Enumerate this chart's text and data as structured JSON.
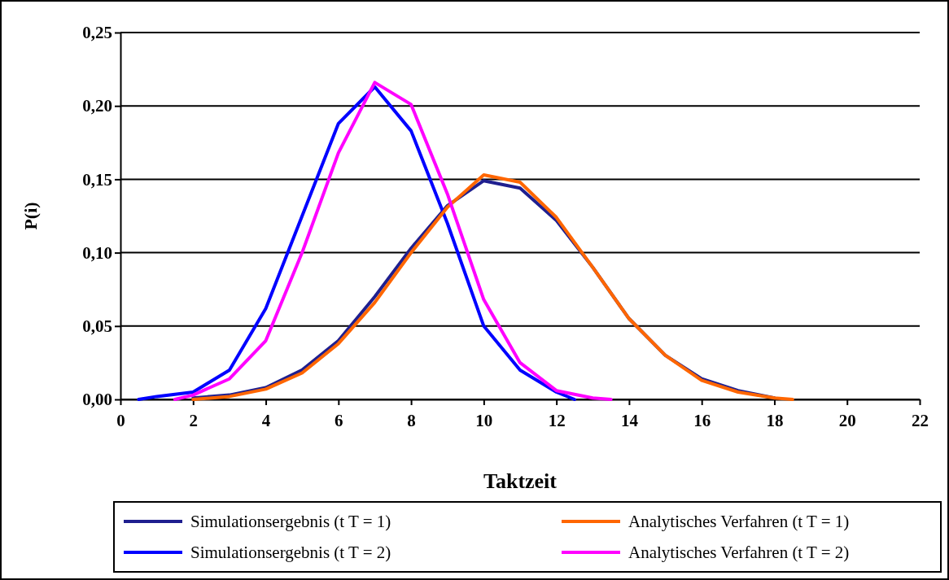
{
  "chart_data": {
    "type": "line",
    "xlabel": "Taktzeit",
    "ylabel": "P(i)",
    "xlim": [
      0,
      22
    ],
    "xticks": [
      0,
      2,
      4,
      6,
      8,
      10,
      12,
      14,
      16,
      18,
      20,
      22
    ],
    "ylim": [
      0,
      0.25
    ],
    "yticks": [
      {
        "value": 0,
        "label": "0,00"
      },
      {
        "value": 0.05,
        "label": "0,05"
      },
      {
        "value": 0.1,
        "label": "0,10"
      },
      {
        "value": 0.15,
        "label": "0,15"
      },
      {
        "value": 0.2,
        "label": "0,20"
      },
      {
        "value": 0.25,
        "label": "0,25"
      }
    ],
    "grid": "y",
    "legend": "bottom",
    "marker": "none",
    "line_style": "solid",
    "series": [
      {
        "name": "Simulationsergebnis (t T = 1)",
        "color": "#1f1f8f",
        "x": [
          2,
          3,
          4,
          5,
          6,
          7,
          8,
          9,
          10,
          11,
          12,
          13,
          14,
          15,
          16,
          17,
          18
        ],
        "values": [
          0.001,
          0.003,
          0.008,
          0.02,
          0.04,
          0.07,
          0.103,
          0.132,
          0.149,
          0.144,
          0.122,
          0.09,
          0.055,
          0.03,
          0.014,
          0.006,
          0.001
        ]
      },
      {
        "name": "Simulationsergebnis (t T = 2)",
        "color": "#0000ff",
        "x": [
          0.5,
          1,
          2,
          3,
          4,
          5,
          6,
          7,
          8,
          9,
          10,
          11,
          12,
          12.5
        ],
        "values": [
          0,
          0.002,
          0.005,
          0.02,
          0.062,
          0.125,
          0.188,
          0.213,
          0.183,
          0.12,
          0.05,
          0.02,
          0.005,
          0
        ]
      },
      {
        "name": "Analytisches Verfahren (t T = 1)",
        "color": "#ff6600",
        "x": [
          2,
          3,
          4,
          5,
          6,
          7,
          8,
          9,
          10,
          11,
          12,
          13,
          14,
          15,
          16,
          17,
          18,
          18.5
        ],
        "values": [
          0,
          0.002,
          0.007,
          0.018,
          0.038,
          0.066,
          0.1,
          0.131,
          0.153,
          0.148,
          0.124,
          0.09,
          0.055,
          0.03,
          0.013,
          0.005,
          0.001,
          0
        ]
      },
      {
        "name": "Analytisches Verfahren (t T = 2)",
        "color": "#ff00ff",
        "x": [
          1.5,
          2,
          3,
          4,
          5,
          6,
          7,
          8,
          9,
          10,
          11,
          12,
          13,
          13.5
        ],
        "values": [
          0,
          0.003,
          0.014,
          0.04,
          0.1,
          0.168,
          0.216,
          0.201,
          0.14,
          0.068,
          0.025,
          0.006,
          0.001,
          0
        ]
      }
    ]
  }
}
